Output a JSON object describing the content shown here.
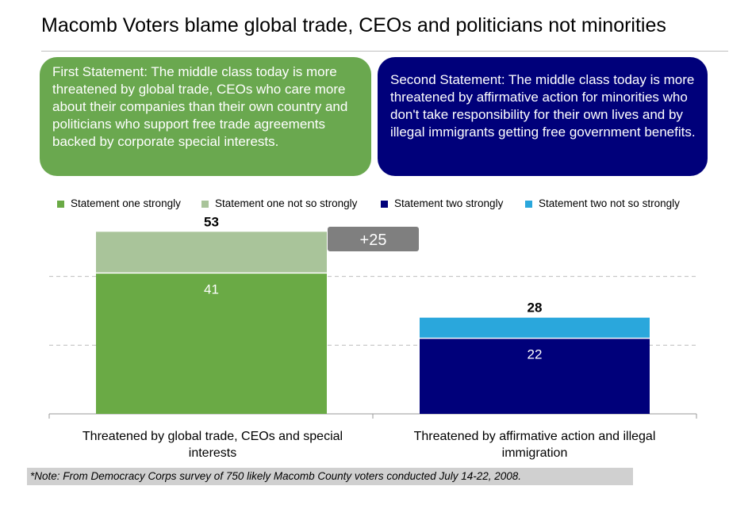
{
  "title": "Macomb Voters blame global trade, CEOs and politicians not minorities",
  "statements": {
    "first": "First Statement: The middle class today is more threatened by global trade, CEOs who care more about their companies than their own country and politicians who support free trade agreements backed by corporate special interests.",
    "second": "Second Statement: The middle class today is more threatened by affirmative action for minorities who don't take responsibility for their own lives and by illegal immigrants getting free government benefits."
  },
  "note": "*Note: From Democracy Corps survey of 750 likely Macomb County voters conducted July 14-22, 2008.",
  "colors": {
    "one_strong": "#6aaa45",
    "one_soft": "#a9c49a",
    "two_strong": "#00007a",
    "two_soft": "#2aa7dc",
    "diff_badge": "#7f7f7f"
  },
  "chart_data": {
    "type": "bar",
    "stacked": true,
    "categories": [
      "Threatened by global trade, CEOs and special interests",
      "Threatened by affirmative action and illegal immigration"
    ],
    "series": [
      {
        "name": "Statement one strongly",
        "values": [
          41,
          0
        ]
      },
      {
        "name": "Statement one not so strongly",
        "values": [
          12,
          0
        ]
      },
      {
        "name": "Statement two strongly",
        "values": [
          0,
          22
        ]
      },
      {
        "name": "Statement two not so strongly",
        "values": [
          0,
          6
        ]
      }
    ],
    "totals": [
      53,
      28
    ],
    "strong_labels": [
      41,
      22
    ],
    "difference_label": "+25",
    "ylim": [
      0,
      60
    ],
    "grid": true,
    "legend_position": "top"
  }
}
